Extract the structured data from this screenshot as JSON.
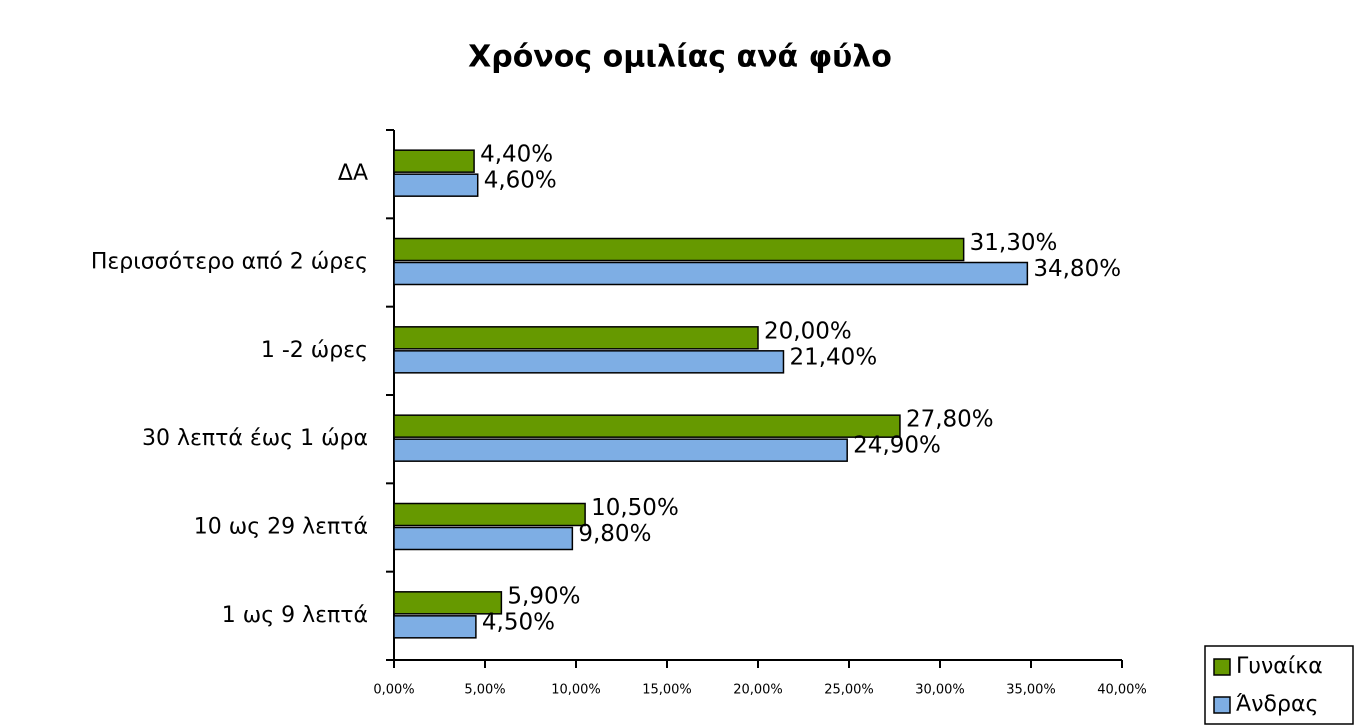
{
  "chart_data": {
    "type": "bar",
    "orientation": "horizontal",
    "title": "Χρόνος ομιλίας ανά φύλο",
    "categories": [
      "ΔΑ",
      "Περισσότερο από 2 ώρες",
      "1 -2 ώρες",
      "30 λεπτά έως 1 ώρα",
      "10 ως 29 λεπτά",
      "1 ως 9 λεπτά"
    ],
    "series": [
      {
        "name": "Γυναίκα",
        "color": "#669900",
        "values": [
          4.4,
          31.3,
          20.0,
          27.8,
          10.5,
          5.9
        ],
        "value_labels": [
          "4,40%",
          "31,30%",
          "20,00%",
          "27,80%",
          "10,50%",
          "5,90%"
        ]
      },
      {
        "name": "Άνδρας",
        "color": "#7eaee4",
        "values": [
          4.6,
          34.8,
          21.4,
          24.9,
          9.8,
          4.5
        ],
        "value_labels": [
          "4,60%",
          "34,80%",
          "21,40%",
          "24,90%",
          "9,80%",
          "4,50%"
        ]
      }
    ],
    "xlim": [
      0,
      40
    ],
    "xticks": [
      {
        "value": 0,
        "label": "0,00%"
      },
      {
        "value": 5,
        "label": "5,00%"
      },
      {
        "value": 10,
        "label": "10,00%"
      },
      {
        "value": 15,
        "label": "15,00%"
      },
      {
        "value": 20,
        "label": "20,00%"
      },
      {
        "value": 25,
        "label": "25,00%"
      },
      {
        "value": 30,
        "label": "30,00%"
      },
      {
        "value": 35,
        "label": "35,00%"
      },
      {
        "value": 40,
        "label": "40,00%"
      }
    ],
    "legend": "bottom-right"
  }
}
